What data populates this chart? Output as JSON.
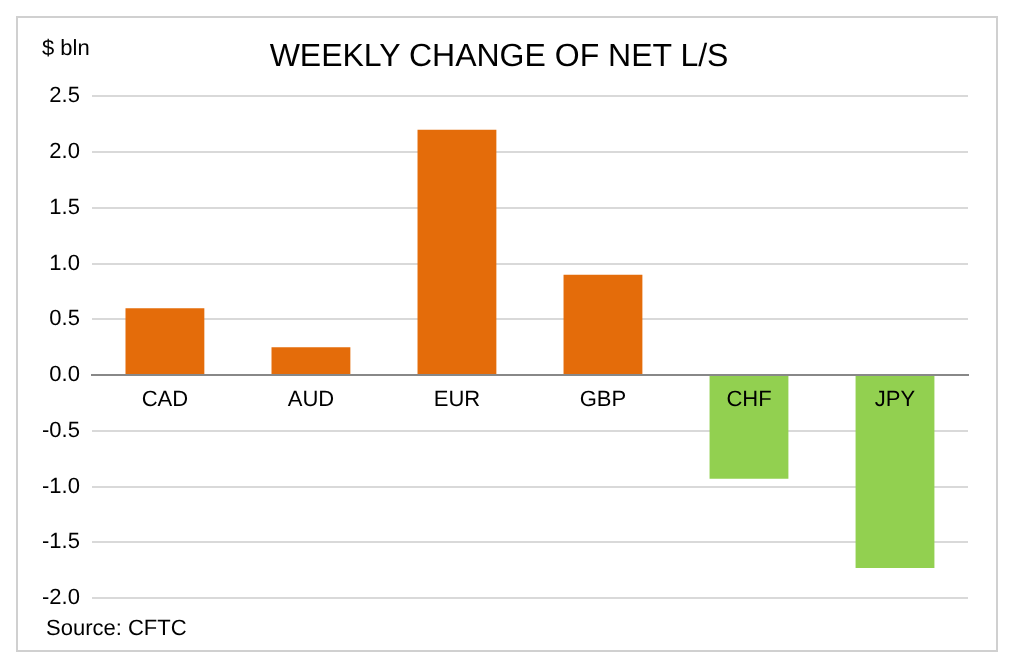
{
  "chart_data": {
    "type": "bar",
    "title": "WEEKLY CHANGE OF NET L/S",
    "ylabel": "$ bln",
    "categories": [
      "CAD",
      "AUD",
      "EUR",
      "GBP",
      "CHF",
      "JPY"
    ],
    "values": [
      0.6,
      0.25,
      2.2,
      0.9,
      -0.93,
      -1.73
    ],
    "colors": [
      "#e46c0a",
      "#e46c0a",
      "#e46c0a",
      "#e46c0a",
      "#92d050",
      "#92d050"
    ],
    "ylim": [
      -2.0,
      2.5
    ],
    "yticks": [
      {
        "value": -2.0,
        "label": "-2.0"
      },
      {
        "value": -1.5,
        "label": "-1.5"
      },
      {
        "value": -1.0,
        "label": "-1.0"
      },
      {
        "value": -0.5,
        "label": "-0.5"
      },
      {
        "value": 0,
        "label": "0.0"
      },
      {
        "value": 0.5,
        "label": "0.5"
      },
      {
        "value": 1.0,
        "label": "1.0"
      },
      {
        "value": 1.5,
        "label": "1.5"
      },
      {
        "value": 2.0,
        "label": "2.0"
      },
      {
        "value": 2.5,
        "label": "2.5"
      }
    ],
    "grid": "y",
    "legend": false,
    "annotations": [
      "Source: CFTC"
    ]
  }
}
